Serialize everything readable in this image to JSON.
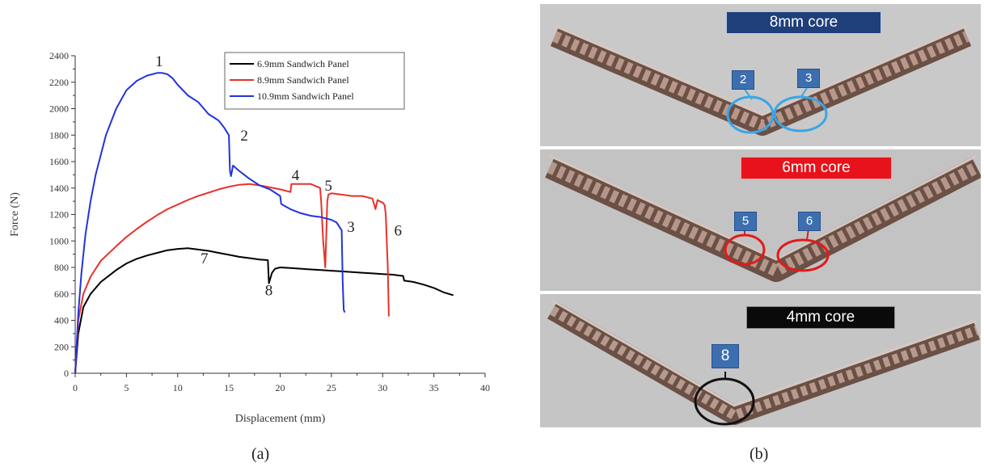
{
  "chart_data": {
    "type": "line",
    "title": "",
    "xlabel": "Displacement (mm)",
    "ylabel": "Force (N)",
    "xlim": [
      0,
      40
    ],
    "ylim": [
      0,
      2400
    ],
    "xticks": [
      0,
      5,
      10,
      15,
      20,
      25,
      30,
      35,
      40
    ],
    "yticks": [
      0,
      200,
      400,
      600,
      800,
      1000,
      1200,
      1400,
      1600,
      1800,
      2000,
      2200,
      2400
    ],
    "grid": false,
    "legend_position": "top-right",
    "series": [
      {
        "name": "6.9mm Sandwich Panel",
        "color": "#000000",
        "x": [
          0,
          0.3,
          0.8,
          1.5,
          2.5,
          4,
          5,
          6,
          7,
          8,
          9,
          10,
          11,
          12,
          13,
          14,
          15,
          16,
          17,
          18,
          18.8,
          18.9,
          19.2,
          19.5,
          20,
          21,
          22,
          23,
          24,
          25,
          26,
          27,
          28,
          29,
          30,
          31,
          32,
          32.1,
          33,
          34,
          35,
          36,
          36.9
        ],
        "y": [
          0,
          300,
          500,
          600,
          690,
          780,
          830,
          865,
          890,
          910,
          930,
          940,
          945,
          935,
          925,
          910,
          895,
          880,
          870,
          860,
          855,
          680,
          760,
          790,
          800,
          795,
          790,
          785,
          780,
          775,
          770,
          765,
          760,
          755,
          750,
          745,
          735,
          700,
          690,
          670,
          645,
          610,
          590
        ]
      },
      {
        "name": "8.9mm Sandwich Panel",
        "color": "#e8312a",
        "x": [
          0,
          0.3,
          0.8,
          1.5,
          2.5,
          4,
          5,
          6,
          7,
          8,
          9,
          10,
          11,
          12,
          13,
          14,
          15,
          16,
          17,
          18,
          19,
          20,
          21,
          21.1,
          22,
          23,
          23.9,
          24,
          24.2,
          24.4,
          24.6,
          24.7,
          25,
          26,
          27,
          28,
          29,
          29.3,
          29.5,
          29.7,
          30,
          30.2,
          30.3,
          30.5,
          30.6
        ],
        "y": [
          0,
          400,
          600,
          730,
          850,
          960,
          1030,
          1090,
          1145,
          1195,
          1240,
          1275,
          1310,
          1340,
          1365,
          1390,
          1410,
          1425,
          1430,
          1420,
          1405,
          1390,
          1370,
          1430,
          1430,
          1430,
          1400,
          1300,
          1000,
          800,
          1300,
          1350,
          1360,
          1350,
          1340,
          1340,
          1320,
          1240,
          1310,
          1300,
          1290,
          1270,
          1200,
          800,
          430
        ]
      },
      {
        "name": "10.9mm Sandwich Panel",
        "color": "#2233dd",
        "x": [
          0,
          0.3,
          0.6,
          1,
          1.5,
          2,
          3,
          4,
          5,
          6,
          7,
          8,
          8.5,
          9,
          9.5,
          10,
          11,
          12,
          13,
          14,
          14.5,
          15,
          15.1,
          15.2,
          15.4,
          15.7,
          16,
          17,
          18,
          19,
          20,
          20.1,
          20.3,
          21,
          22,
          23,
          24,
          25,
          25.5,
          26,
          26.1,
          26.2,
          26.3
        ],
        "y": [
          0,
          450,
          750,
          1050,
          1300,
          1500,
          1800,
          2000,
          2140,
          2210,
          2250,
          2270,
          2270,
          2260,
          2230,
          2180,
          2100,
          2050,
          1960,
          1910,
          1860,
          1800,
          1530,
          1490,
          1570,
          1550,
          1530,
          1470,
          1420,
          1390,
          1340,
          1280,
          1270,
          1240,
          1210,
          1190,
          1180,
          1160,
          1140,
          1080,
          700,
          480,
          460
        ]
      }
    ],
    "annotations": [
      {
        "text": "1",
        "x": 8.2,
        "y": 2320
      },
      {
        "text": "2",
        "x": 16.5,
        "y": 1760
      },
      {
        "text": "4",
        "x": 21.5,
        "y": 1460
      },
      {
        "text": "5",
        "x": 24.7,
        "y": 1380
      },
      {
        "text": "3",
        "x": 26.9,
        "y": 1070
      },
      {
        "text": "6",
        "x": 31.5,
        "y": 1040
      },
      {
        "text": "7",
        "x": 12.6,
        "y": 830
      },
      {
        "text": "8",
        "x": 18.9,
        "y": 590
      }
    ]
  },
  "captions": {
    "panel_a": "(a)",
    "panel_b": "(b)"
  },
  "photos": [
    {
      "label": "8mm core",
      "label_bg": "#1e3f7a",
      "label_color": "#ffffff",
      "markers": [
        "2",
        "3"
      ],
      "ring_color": "#3aa6e6"
    },
    {
      "label": "6mm core",
      "label_bg": "#e8121b",
      "label_color": "#ffffff",
      "markers": [
        "5",
        "6"
      ],
      "ring_color": "#e21a1a"
    },
    {
      "label": "4mm core",
      "label_bg": "#0a0a0a",
      "label_color": "#ffffff",
      "markers": [
        "8"
      ],
      "ring_color": "#111111"
    }
  ]
}
